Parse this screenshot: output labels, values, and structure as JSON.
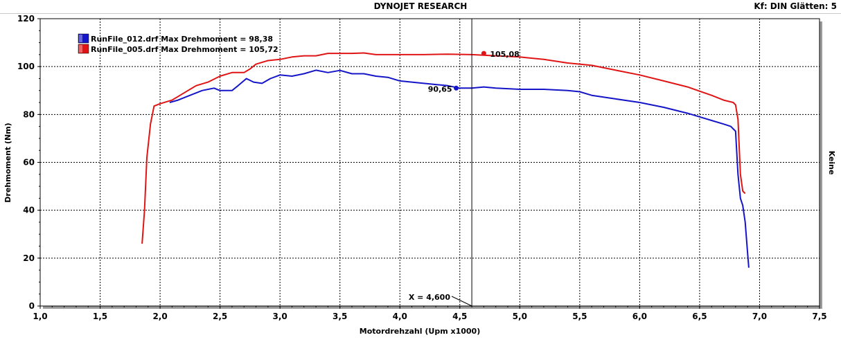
{
  "header": {
    "title": "DYNOJET RESEARCH",
    "right": "Kf: DIN  Glätten: 5"
  },
  "right_label": "Keine",
  "chart_data": {
    "type": "line",
    "xlabel": "Motordrehzahl (Upm x1000)",
    "ylabel": "Drehmoment (Nm)",
    "xlim": [
      1.0,
      7.5
    ],
    "ylim": [
      0,
      120
    ],
    "x_ticks": [
      "1,0",
      "1,5",
      "2,0",
      "2,5",
      "3,0",
      "3,5",
      "4,0",
      "4,5",
      "5,0",
      "5,5",
      "6,0",
      "6,5",
      "7,0",
      "7,5"
    ],
    "y_ticks": [
      "0",
      "20",
      "40",
      "60",
      "80",
      "100",
      "120"
    ],
    "grid": true,
    "cursor_x": 4.6,
    "cursor_label": "X = 4,600",
    "legend_position": "top-left",
    "series": [
      {
        "name": "RunFile_012.drf Max Drehmoment = 98,38",
        "color": "#1414c8",
        "marker": {
          "x": 4.47,
          "y": 91.0,
          "label": "90,65"
        },
        "points": [
          [
            2.08,
            85.0
          ],
          [
            2.15,
            86.0
          ],
          [
            2.25,
            88.0
          ],
          [
            2.35,
            90.0
          ],
          [
            2.45,
            91.0
          ],
          [
            2.5,
            90.0
          ],
          [
            2.6,
            90.0
          ],
          [
            2.65,
            92.0
          ],
          [
            2.72,
            95.0
          ],
          [
            2.78,
            93.5
          ],
          [
            2.85,
            93.0
          ],
          [
            2.92,
            95.0
          ],
          [
            3.0,
            96.5
          ],
          [
            3.1,
            96.0
          ],
          [
            3.2,
            97.0
          ],
          [
            3.3,
            98.5
          ],
          [
            3.4,
            97.5
          ],
          [
            3.5,
            98.4
          ],
          [
            3.6,
            97.0
          ],
          [
            3.7,
            97.0
          ],
          [
            3.8,
            96.0
          ],
          [
            3.9,
            95.5
          ],
          [
            4.0,
            94.0
          ],
          [
            4.1,
            93.5
          ],
          [
            4.2,
            93.0
          ],
          [
            4.3,
            92.5
          ],
          [
            4.4,
            92.0
          ],
          [
            4.5,
            91.0
          ],
          [
            4.6,
            91.0
          ],
          [
            4.7,
            91.5
          ],
          [
            4.8,
            91.0
          ],
          [
            5.0,
            90.5
          ],
          [
            5.2,
            90.5
          ],
          [
            5.4,
            90.0
          ],
          [
            5.5,
            89.5
          ],
          [
            5.6,
            88.0
          ],
          [
            5.8,
            86.5
          ],
          [
            6.0,
            85.0
          ],
          [
            6.2,
            83.0
          ],
          [
            6.4,
            80.5
          ],
          [
            6.5,
            79.0
          ],
          [
            6.6,
            77.5
          ],
          [
            6.7,
            76.0
          ],
          [
            6.76,
            75.0
          ],
          [
            6.8,
            73.0
          ],
          [
            6.82,
            55.0
          ],
          [
            6.84,
            45.0
          ],
          [
            6.86,
            42.0
          ],
          [
            6.88,
            35.0
          ],
          [
            6.9,
            22.0
          ],
          [
            6.91,
            16.0
          ]
        ]
      },
      {
        "name": "RunFile_005.drf Max Drehmoment = 105,72",
        "color": "#e01414",
        "marker": {
          "x": 4.7,
          "y": 105.5,
          "label": "105,08"
        },
        "points": [
          [
            1.85,
            26.0
          ],
          [
            1.87,
            40.0
          ],
          [
            1.89,
            62.0
          ],
          [
            1.92,
            76.0
          ],
          [
            1.95,
            83.5
          ],
          [
            2.0,
            84.5
          ],
          [
            2.1,
            86.0
          ],
          [
            2.2,
            89.0
          ],
          [
            2.3,
            92.0
          ],
          [
            2.4,
            93.5
          ],
          [
            2.5,
            96.0
          ],
          [
            2.6,
            97.5
          ],
          [
            2.7,
            97.5
          ],
          [
            2.75,
            99.0
          ],
          [
            2.8,
            101.0
          ],
          [
            2.9,
            102.5
          ],
          [
            3.0,
            103.0
          ],
          [
            3.1,
            104.0
          ],
          [
            3.2,
            104.5
          ],
          [
            3.3,
            104.5
          ],
          [
            3.4,
            105.5
          ],
          [
            3.5,
            105.5
          ],
          [
            3.6,
            105.5
          ],
          [
            3.7,
            105.7
          ],
          [
            3.8,
            105.0
          ],
          [
            4.0,
            105.0
          ],
          [
            4.2,
            105.0
          ],
          [
            4.4,
            105.2
          ],
          [
            4.6,
            105.0
          ],
          [
            4.8,
            104.5
          ],
          [
            5.0,
            104.0
          ],
          [
            5.2,
            103.0
          ],
          [
            5.4,
            101.5
          ],
          [
            5.6,
            100.5
          ],
          [
            5.8,
            98.5
          ],
          [
            6.0,
            96.5
          ],
          [
            6.2,
            94.0
          ],
          [
            6.4,
            91.5
          ],
          [
            6.6,
            88.0
          ],
          [
            6.7,
            86.0
          ],
          [
            6.78,
            85.0
          ],
          [
            6.8,
            84.0
          ],
          [
            6.82,
            78.0
          ],
          [
            6.84,
            55.0
          ],
          [
            6.86,
            48.0
          ],
          [
            6.88,
            47.0
          ]
        ]
      }
    ]
  }
}
